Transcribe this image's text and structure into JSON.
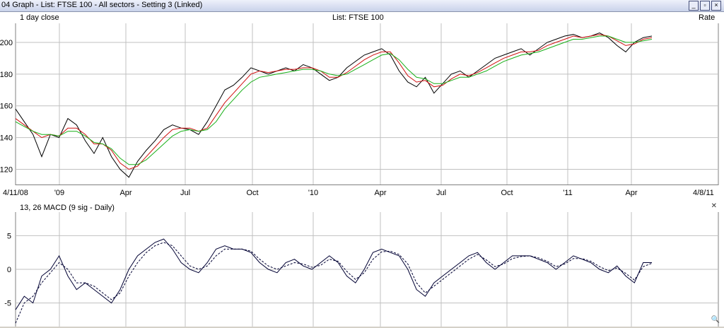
{
  "window": {
    "title": "04 Graph - List: FTSE 100 - All sectors - Setting 3 (Linked)",
    "buttons": [
      "_",
      "▫",
      "×"
    ]
  },
  "top_panel": {
    "left_label": "1 day close",
    "center_label": "List: FTSE 100",
    "right_label": "Rate"
  },
  "bottom_panel": {
    "left_label": "13, 26 MACD (9 sig - Daily)"
  },
  "colors": {
    "price": "#000000",
    "ma_short": "#d01010",
    "ma_long": "#18b018",
    "grid": "#c0c0c0",
    "macd": "#000033"
  },
  "chart_data": [
    {
      "type": "line",
      "x_tick_labels": [
        "4/11/08",
        "'09",
        "Apr",
        "Jul",
        "Oct",
        "'10",
        "Apr",
        "Jul",
        "Oct",
        "'11",
        "Apr",
        "4/8/11"
      ],
      "y_tick_labels": [
        "120",
        "140",
        "160",
        "180",
        "200"
      ],
      "ylim": [
        110,
        212
      ],
      "series": [
        {
          "values": [
            158,
            150,
            142,
            128,
            142,
            140,
            152,
            148,
            138,
            130,
            140,
            128,
            120,
            115,
            125,
            132,
            138,
            145,
            148,
            146,
            145,
            142,
            150,
            160,
            170,
            173,
            178,
            184,
            182,
            180,
            182,
            184,
            182,
            186,
            184,
            180,
            176,
            178,
            184,
            188,
            192,
            194,
            196,
            192,
            182,
            175,
            172,
            178,
            168,
            174,
            180,
            182,
            178,
            182,
            186,
            190,
            192,
            194,
            196,
            192,
            196,
            200,
            202,
            204,
            205,
            203,
            204,
            206,
            203,
            198,
            194,
            200,
            203,
            204
          ]
        },
        {
          "values": [
            152,
            148,
            144,
            140,
            142,
            141,
            146,
            146,
            142,
            136,
            136,
            132,
            124,
            120,
            122,
            128,
            134,
            140,
            145,
            146,
            146,
            144,
            146,
            154,
            162,
            168,
            174,
            180,
            182,
            181,
            182,
            183,
            183,
            184,
            184,
            182,
            178,
            178,
            181,
            185,
            189,
            192,
            194,
            194,
            187,
            179,
            175,
            176,
            172,
            173,
            177,
            180,
            179,
            181,
            184,
            187,
            190,
            192,
            194,
            194,
            195,
            198,
            200,
            202,
            204,
            203,
            204,
            205,
            204,
            201,
            198,
            199,
            202,
            203
          ]
        },
        {
          "values": [
            150,
            147,
            144,
            142,
            142,
            141,
            144,
            144,
            141,
            137,
            136,
            133,
            127,
            123,
            123,
            126,
            131,
            136,
            141,
            144,
            145,
            144,
            145,
            150,
            158,
            164,
            170,
            175,
            178,
            179,
            180,
            181,
            182,
            183,
            183,
            182,
            180,
            179,
            180,
            183,
            186,
            189,
            192,
            193,
            189,
            183,
            178,
            177,
            174,
            174,
            176,
            178,
            178,
            180,
            182,
            185,
            188,
            190,
            192,
            193,
            194,
            196,
            198,
            200,
            202,
            202,
            203,
            204,
            204,
            202,
            200,
            200,
            201,
            202
          ]
        }
      ]
    },
    {
      "type": "line",
      "y_tick_labels": [
        "5",
        "0",
        "-5"
      ],
      "ylim": [
        -8.5,
        8.5
      ],
      "series": [
        {
          "values": [
            -6,
            -4,
            -5,
            -1,
            0,
            2,
            -1,
            -3,
            -2,
            -3,
            -4,
            -5,
            -3,
            0,
            2,
            3,
            4,
            4.5,
            3,
            1,
            0,
            -0.5,
            1,
            3,
            3.5,
            3,
            3,
            2.5,
            1,
            0,
            -0.5,
            1,
            1.5,
            0.5,
            0,
            1,
            2,
            1,
            -1,
            -2,
            0,
            2.5,
            3,
            2.5,
            2,
            0,
            -3,
            -4,
            -2,
            -1,
            0,
            1,
            2,
            2.5,
            1,
            0,
            1,
            2,
            2,
            2,
            1.5,
            1,
            0,
            1,
            2,
            1.5,
            1,
            0,
            -0.5,
            0.5,
            -1,
            -2,
            1,
            1
          ]
        },
        {
          "values": [
            -8,
            -5,
            -4,
            -2,
            -0.5,
            1,
            0,
            -2,
            -2,
            -2.5,
            -3.5,
            -4.5,
            -3.5,
            -1,
            1,
            2.5,
            3.5,
            4,
            3.5,
            2,
            0.5,
            0,
            0.5,
            2,
            3,
            3,
            3,
            2.7,
            1.5,
            0.5,
            0,
            0.5,
            1,
            0.8,
            0.3,
            0.6,
            1.5,
            1.2,
            -0.3,
            -1.5,
            -0.5,
            1.5,
            2.6,
            2.7,
            2.2,
            0.8,
            -2,
            -3.5,
            -2.5,
            -1.5,
            -0.5,
            0.5,
            1.5,
            2.2,
            1.4,
            0.4,
            0.8,
            1.6,
            1.9,
            2,
            1.7,
            1.2,
            0.4,
            0.8,
            1.6,
            1.6,
            1.2,
            0.4,
            -0.2,
            0.2,
            -0.6,
            -1.6,
            0.4,
            0.9
          ]
        }
      ]
    }
  ]
}
